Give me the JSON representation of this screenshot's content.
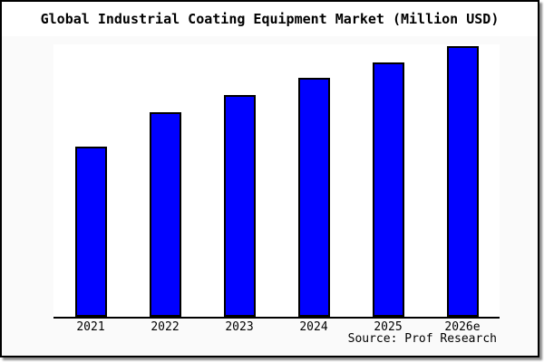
{
  "title": "Global Industrial Coating Equipment Market (Million USD)",
  "source": "Source: Prof Research",
  "colors": {
    "bar_fill": "#0000ff",
    "bar_border": "#000000",
    "plot_background": "#ffffff",
    "outer_background": "#fafafa",
    "title_strip_background": "#ffffff",
    "frame_border": "#000000",
    "text": "#000000"
  },
  "chart_data": {
    "type": "bar",
    "title": "Global Industrial Coating Equipment Market (Million USD)",
    "categories": [
      "2021",
      "2022",
      "2023",
      "2024",
      "2025",
      "2026e"
    ],
    "values": [
      188,
      226,
      245,
      264,
      281,
      299
    ],
    "value_scale": "relative-pixel-height (no value axis or data labels shown in chart)",
    "xlabel": "",
    "ylabel": "",
    "value_axis_labels_shown": false,
    "grid": false,
    "legend": "none",
    "source": "Source: Prof Research"
  }
}
